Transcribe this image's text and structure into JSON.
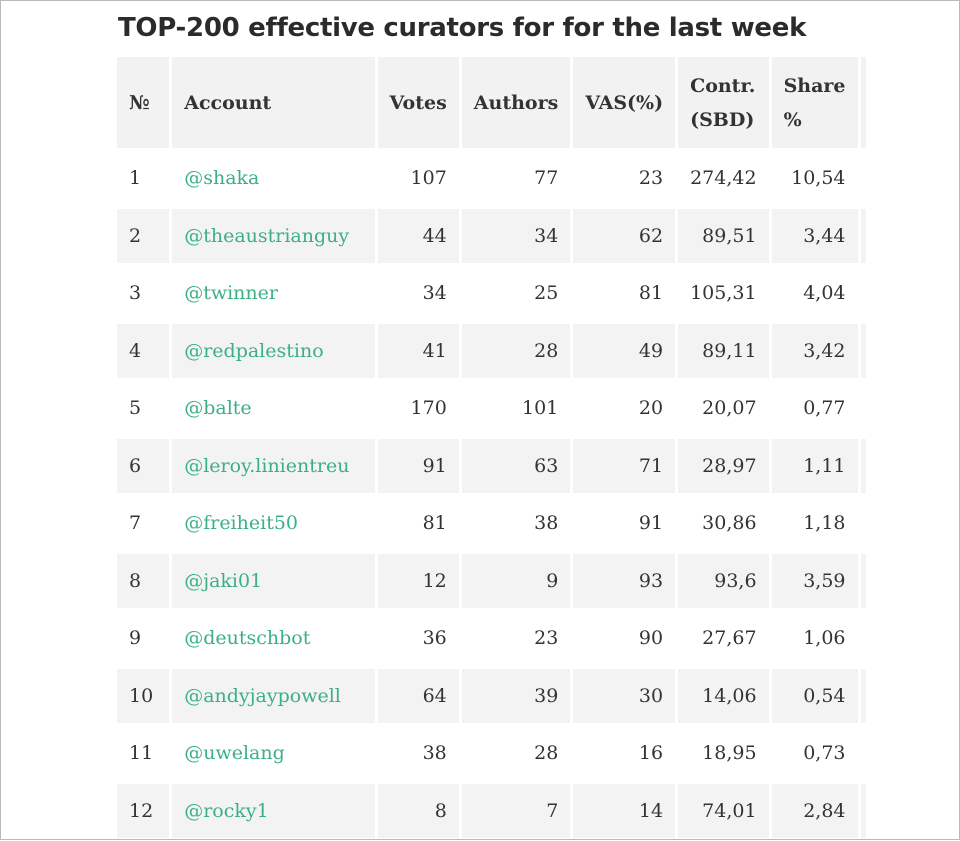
{
  "title": "TOP-200 effective curators for for the last week",
  "table": {
    "headers": {
      "num": "№",
      "account": "Account",
      "votes": "Votes",
      "authors": "Authors",
      "vas": "VAS(%)",
      "contr_line1": "Contr.",
      "contr_line2": "(SBD)",
      "share_line1": "Share",
      "share_line2": "%"
    },
    "rows": [
      {
        "num": "1",
        "account": "@shaka",
        "votes": "107",
        "authors": "77",
        "vas": "23",
        "contr": "274,42",
        "share": "10,54"
      },
      {
        "num": "2",
        "account": "@theaustrianguy",
        "votes": "44",
        "authors": "34",
        "vas": "62",
        "contr": "89,51",
        "share": "3,44"
      },
      {
        "num": "3",
        "account": "@twinner",
        "votes": "34",
        "authors": "25",
        "vas": "81",
        "contr": "105,31",
        "share": "4,04"
      },
      {
        "num": "4",
        "account": "@redpalestino",
        "votes": "41",
        "authors": "28",
        "vas": "49",
        "contr": "89,11",
        "share": "3,42"
      },
      {
        "num": "5",
        "account": "@balte",
        "votes": "170",
        "authors": "101",
        "vas": "20",
        "contr": "20,07",
        "share": "0,77"
      },
      {
        "num": "6",
        "account": "@leroy.linientreu",
        "votes": "91",
        "authors": "63",
        "vas": "71",
        "contr": "28,97",
        "share": "1,11"
      },
      {
        "num": "7",
        "account": "@freiheit50",
        "votes": "81",
        "authors": "38",
        "vas": "91",
        "contr": "30,86",
        "share": "1,18"
      },
      {
        "num": "8",
        "account": "@jaki01",
        "votes": "12",
        "authors": "9",
        "vas": "93",
        "contr": "93,6",
        "share": "3,59"
      },
      {
        "num": "9",
        "account": "@deutschbot",
        "votes": "36",
        "authors": "23",
        "vas": "90",
        "contr": "27,67",
        "share": "1,06"
      },
      {
        "num": "10",
        "account": "@andyjaypowell",
        "votes": "64",
        "authors": "39",
        "vas": "30",
        "contr": "14,06",
        "share": "0,54"
      },
      {
        "num": "11",
        "account": "@uwelang",
        "votes": "38",
        "authors": "28",
        "vas": "16",
        "contr": "18,95",
        "share": "0,73"
      },
      {
        "num": "12",
        "account": "@rocky1",
        "votes": "8",
        "authors": "7",
        "vas": "14",
        "contr": "74,01",
        "share": "2,84"
      }
    ]
  },
  "colors": {
    "link": "#3bb083",
    "header_bg": "#f2f2f2",
    "row_alt_bg": "#f3f3f3"
  }
}
